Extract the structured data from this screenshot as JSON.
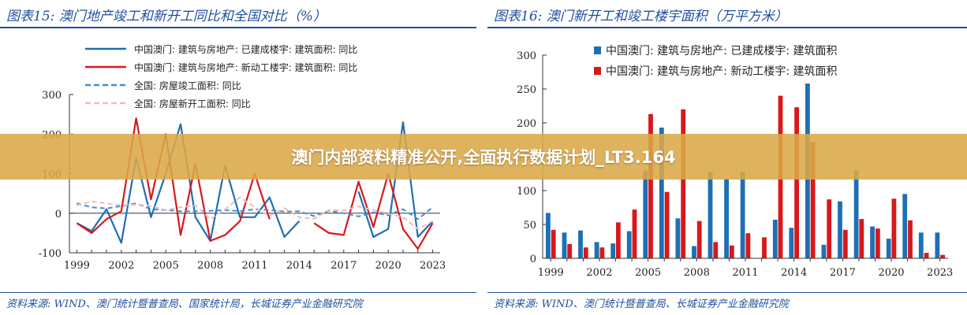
{
  "banner": {
    "text": "澳门内部资料精准公开,全面执行数据计划_LT3.164"
  },
  "left": {
    "title": "图表15:  澳门地产竣工和新开工同比和全国对比（%）",
    "source": "资料来源:  WIND、澳门统计暨普查局、国家统计局，长城证券产业金融研究院"
  },
  "right": {
    "title": "图表16:  澳门新开工和竣工楼宇面积（万平方米）",
    "source": "资料来源:  WIND、澳门统计暨普查局、长城证券产业金融研究院"
  },
  "chart_data": [
    {
      "type": "line",
      "title": "图表15:  澳门地产竣工和新开工同比和全国对比（%）",
      "x": [
        1999,
        2000,
        2001,
        2002,
        2003,
        2004,
        2005,
        2006,
        2007,
        2008,
        2009,
        2010,
        2011,
        2012,
        2013,
        2014,
        2015,
        2016,
        2017,
        2018,
        2019,
        2020,
        2021,
        2022,
        2023
      ],
      "xticks": [
        1999,
        2002,
        2005,
        2008,
        2011,
        2014,
        2017,
        2020,
        2023
      ],
      "ylim": [
        -100,
        300
      ],
      "yticks": [
        -100,
        0,
        100,
        200,
        300
      ],
      "legend_position": "top",
      "series": [
        {
          "name": "中国澳门: 建筑与房地产: 已建成楼宇: 建筑面积: 同比",
          "color": "#1f6fb4",
          "dash": "solid",
          "values": [
            -25,
            -45,
            10,
            -75,
            140,
            -10,
            100,
            225,
            -10,
            -70,
            120,
            -10,
            -10,
            40,
            -60,
            -20,
            null,
            null,
            null,
            55,
            -60,
            -40,
            230,
            -60,
            -20
          ]
        },
        {
          "name": "中国澳门: 建筑与房地产: 新动工楼宇: 建筑面积: 同比",
          "color": "#d7191c",
          "dash": "solid",
          "values": [
            -25,
            -50,
            -15,
            5,
            240,
            35,
            200,
            -55,
            125,
            -70,
            -55,
            -20,
            100,
            -15,
            null,
            null,
            -25,
            -50,
            -55,
            80,
            -35,
            100,
            -40,
            -90,
            -25
          ]
        },
        {
          "name": "全国: 房屋竣工面积: 同比",
          "color": "#3d8fd1",
          "dash": "dashed",
          "values": [
            25,
            15,
            12,
            18,
            25,
            10,
            8,
            5,
            5,
            6,
            8,
            5,
            10,
            8,
            4,
            5,
            -7,
            6,
            0,
            -8,
            2,
            -5,
            10,
            -15,
            15
          ]
        },
        {
          "name": "全国: 房屋新开工面积: 同比",
          "color": "#f2b8b8",
          "dash": "dashed",
          "values": [
            20,
            30,
            25,
            20,
            22,
            18,
            8,
            15,
            20,
            -15,
            10,
            40,
            15,
            -7,
            13,
            -10,
            -14,
            8,
            7,
            17,
            8,
            -1,
            -10,
            -40,
            -20
          ]
        }
      ]
    },
    {
      "type": "bar",
      "title": "图表16:  澳门新开工和竣工楼宇面积（万平方米）",
      "categories": [
        1999,
        2000,
        2001,
        2002,
        2003,
        2004,
        2005,
        2006,
        2007,
        2008,
        2009,
        2010,
        2011,
        2012,
        2013,
        2014,
        2015,
        2016,
        2017,
        2018,
        2019,
        2020,
        2021,
        2022,
        2023
      ],
      "xticks": [
        1999,
        2002,
        2005,
        2008,
        2011,
        2014,
        2017,
        2020,
        2023
      ],
      "ylim": [
        0,
        300
      ],
      "yticks": [
        0,
        50,
        100,
        150,
        200,
        250,
        300
      ],
      "legend_position": "top",
      "series": [
        {
          "name": "中国澳门: 建筑与房地产: 已建成楼宇: 建筑面积",
          "color": "#1f6fb4",
          "values": [
            67,
            38,
            41,
            24,
            22,
            40,
            130,
            193,
            59,
            18,
            128,
            117,
            128,
            0,
            57,
            45,
            258,
            20,
            84,
            130,
            47,
            29,
            95,
            38,
            38
          ]
        },
        {
          "name": "中国澳门: 建筑与房地产: 新动工楼宇: 建筑面积",
          "color": "#d7191c",
          "values": [
            42,
            21,
            16,
            16,
            53,
            72,
            213,
            98,
            220,
            55,
            24,
            19,
            37,
            31,
            240,
            223,
            172,
            87,
            42,
            58,
            44,
            88,
            56,
            8,
            5
          ]
        }
      ]
    }
  ]
}
